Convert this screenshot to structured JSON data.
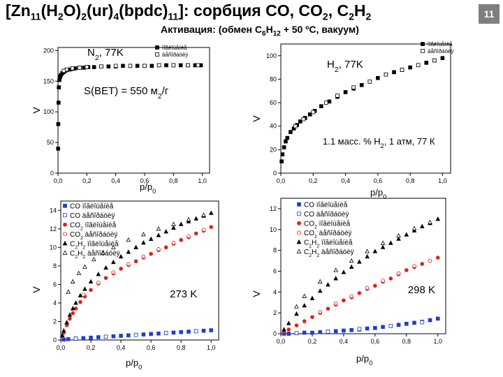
{
  "slide": {
    "title_parts": [
      "[Zn",
      "11",
      "(H",
      "2",
      "O)",
      "2",
      "(ur)",
      "4",
      "(bpdc)",
      "11",
      "]: сорбция CO, CO",
      "2",
      ", C",
      "2",
      "H",
      "2"
    ],
    "subtitle_parts": [
      "Активация: (обмен C",
      "6",
      "H",
      "12",
      " + 50 ºC, вакуум)"
    ],
    "page_number": "11"
  },
  "chart_data": [
    {
      "id": "n2",
      "type": "scatter",
      "xlabel": "p/p0",
      "ylabel": "V",
      "xlim": [
        0,
        1.05
      ],
      "ylim": [
        0,
        205
      ],
      "xticks": [
        0.0,
        0.2,
        0.4,
        0.6,
        0.8,
        1.0
      ],
      "xtick_labels": [
        "0,0",
        "0,2",
        "0,4",
        "0,6",
        "0,8",
        "1,0"
      ],
      "yticks": [
        0,
        50,
        100,
        150,
        200
      ],
      "ytick_labels": [
        "0",
        "50",
        "100",
        "150",
        "200"
      ],
      "annotations": [
        "N2, 77K",
        "S(BET) = 550 м2/г"
      ],
      "legend_position": "top-right",
      "series": [
        {
          "name": "ïîãëîùåíèå",
          "marker": "square-filled",
          "color": "#000000",
          "x": [
            0.001,
            0.002,
            0.004,
            0.006,
            0.01,
            0.015,
            0.02,
            0.03,
            0.04,
            0.05,
            0.06,
            0.08,
            0.1,
            0.12,
            0.15,
            0.18,
            0.21,
            0.25,
            0.3,
            0.35,
            0.4,
            0.45,
            0.5,
            0.55,
            0.6,
            0.65,
            0.7,
            0.75,
            0.8,
            0.85,
            0.9,
            0.95,
            0.99
          ],
          "y": [
            40,
            80,
            115,
            140,
            152,
            157,
            160,
            163,
            165,
            167,
            168,
            169,
            170,
            171,
            172,
            172,
            173,
            173,
            174,
            174,
            174,
            175,
            175,
            175,
            175,
            175,
            176,
            176,
            176,
            176,
            176,
            176,
            176
          ]
        },
        {
          "name": "äåñîðáöèÿ",
          "marker": "square-open",
          "color": "#000000",
          "x": [
            0.97,
            0.9,
            0.8,
            0.7,
            0.6,
            0.5,
            0.4,
            0.3,
            0.2,
            0.15,
            0.1,
            0.06,
            0.04
          ],
          "y": [
            176,
            176,
            176,
            176,
            175,
            175,
            175,
            174,
            173,
            172,
            171,
            169,
            167
          ]
        }
      ]
    },
    {
      "id": "h2",
      "type": "scatter",
      "xlabel": "p/p0",
      "ylabel": "V",
      "xlim": [
        0,
        1.05
      ],
      "ylim": [
        0,
        110
      ],
      "xticks": [
        0.0,
        0.2,
        0.4,
        0.6,
        0.8,
        1.0
      ],
      "xtick_labels": [
        "0,0",
        "0,2",
        "0,4",
        "0,6",
        "0,8",
        "1,0"
      ],
      "yticks": [
        0,
        20,
        40,
        60,
        80,
        100
      ],
      "ytick_labels": [
        "0",
        "20",
        "40",
        "60",
        "80",
        "100"
      ],
      "annotations": [
        "H2, 77K",
        "1.1 масс. % H2, 1 атм, 77 К"
      ],
      "legend_position": "top-right",
      "series": [
        {
          "name": "ïîãëîùåíèå",
          "marker": "square-filled",
          "color": "#000000",
          "x": [
            0.005,
            0.01,
            0.02,
            0.03,
            0.04,
            0.06,
            0.08,
            0.1,
            0.12,
            0.15,
            0.18,
            0.21,
            0.25,
            0.3,
            0.35,
            0.4,
            0.45,
            0.5,
            0.55,
            0.6,
            0.65,
            0.7,
            0.75,
            0.8,
            0.85,
            0.9,
            0.95,
            1.0
          ],
          "y": [
            10,
            16,
            22,
            27,
            30,
            35,
            38,
            41,
            44,
            47,
            50,
            53,
            57,
            61,
            65,
            69,
            72,
            75,
            78,
            81,
            84,
            86,
            88,
            90,
            92,
            94,
            96,
            98
          ]
        },
        {
          "name": "äåñîðáöèÿ",
          "marker": "square-open",
          "color": "#000000",
          "x": [
            0.95,
            0.85,
            0.75,
            0.65,
            0.55,
            0.45,
            0.35,
            0.28,
            0.2,
            0.14,
            0.09
          ],
          "y": [
            96,
            92,
            88,
            84,
            78,
            73,
            66,
            60,
            52,
            46,
            40
          ]
        }
      ]
    },
    {
      "id": "t273",
      "type": "scatter",
      "xlabel": "p/p0",
      "ylabel": "V",
      "xlim": [
        0,
        1.05
      ],
      "ylim": [
        0,
        15
      ],
      "xticks": [
        0.0,
        0.2,
        0.4,
        0.6,
        0.8,
        1.0
      ],
      "xtick_labels": [
        "0,0",
        "0,2",
        "0,4",
        "0,6",
        "0,8",
        "1,0"
      ],
      "yticks": [
        0,
        2,
        4,
        6,
        8,
        10,
        12,
        14
      ],
      "ytick_labels": [
        "0",
        "2",
        "4",
        "6",
        "8",
        "10",
        "12",
        "14"
      ],
      "annotations": [
        "273 K"
      ],
      "legend_position": "top-left",
      "series": [
        {
          "name": "CO ïîãëîùåíèå",
          "marker": "square-filled",
          "color": "#1f3fc8",
          "x": [
            0.02,
            0.05,
            0.1,
            0.15,
            0.2,
            0.25,
            0.3,
            0.35,
            0.4,
            0.45,
            0.5,
            0.55,
            0.6,
            0.65,
            0.7,
            0.75,
            0.8,
            0.85,
            0.9,
            0.95,
            1.0
          ],
          "y": [
            0.05,
            0.1,
            0.15,
            0.2,
            0.25,
            0.3,
            0.35,
            0.4,
            0.45,
            0.5,
            0.55,
            0.6,
            0.65,
            0.7,
            0.75,
            0.8,
            0.85,
            0.9,
            0.95,
            1.0,
            1.05
          ]
        },
        {
          "name": "CO äåñîðáöèÿ",
          "marker": "square-open",
          "color": "#1f3fc8",
          "x": [
            0.9,
            0.7,
            0.5,
            0.3,
            0.1
          ],
          "y": [
            0.95,
            0.75,
            0.55,
            0.35,
            0.15
          ]
        },
        {
          "name": "CO2 ïîãëîùåíèå",
          "marker": "circle-filled",
          "color": "#e0201a",
          "x": [
            0.01,
            0.02,
            0.04,
            0.06,
            0.08,
            0.1,
            0.13,
            0.16,
            0.2,
            0.25,
            0.3,
            0.35,
            0.4,
            0.45,
            0.5,
            0.55,
            0.6,
            0.65,
            0.7,
            0.75,
            0.8,
            0.85,
            0.9,
            0.95,
            1.0
          ],
          "y": [
            0.4,
            0.8,
            1.6,
            2.3,
            2.9,
            3.4,
            4.1,
            4.7,
            5.4,
            6.1,
            6.7,
            7.2,
            7.7,
            8.1,
            8.5,
            8.9,
            9.3,
            9.7,
            10.0,
            10.4,
            10.8,
            11.1,
            11.5,
            11.8,
            12.2
          ]
        },
        {
          "name": "CO2 äåñîðáöèÿ",
          "marker": "circle-open",
          "color": "#e0201a",
          "x": [
            0.95,
            0.85,
            0.75,
            0.65,
            0.55,
            0.45,
            0.35,
            0.25,
            0.15
          ],
          "y": [
            11.9,
            11.2,
            10.5,
            9.8,
            9.0,
            8.2,
            7.3,
            6.2,
            4.9
          ]
        },
        {
          "name": "C2H2 ïîãëîùåíèå",
          "marker": "triangle-filled",
          "color": "#000000",
          "x": [
            0.01,
            0.02,
            0.04,
            0.06,
            0.08,
            0.1,
            0.13,
            0.16,
            0.2,
            0.25,
            0.3,
            0.35,
            0.4,
            0.45,
            0.5,
            0.55,
            0.6,
            0.65,
            0.7,
            0.75,
            0.8,
            0.85,
            0.9,
            0.95,
            1.0
          ],
          "y": [
            0.5,
            1.0,
            1.9,
            2.7,
            3.4,
            4.0,
            4.8,
            5.5,
            6.3,
            7.1,
            7.8,
            8.4,
            9.0,
            9.5,
            10.0,
            10.5,
            10.9,
            11.3,
            11.7,
            12.1,
            12.5,
            12.8,
            13.1,
            13.4,
            13.7
          ]
        },
        {
          "name": "C2H2 äåñîðáöèÿ",
          "marker": "triangle-open",
          "color": "#000000",
          "x": [
            0.95,
            0.85,
            0.75,
            0.65,
            0.55,
            0.45,
            0.35,
            0.28,
            0.22,
            0.16,
            0.12,
            0.08,
            0.05
          ],
          "y": [
            13.5,
            13.0,
            12.5,
            12.0,
            11.4,
            10.8,
            10.0,
            9.4,
            8.7,
            7.9,
            7.2,
            6.3,
            5.2
          ]
        }
      ]
    },
    {
      "id": "t298",
      "type": "scatter",
      "xlabel": "p/p0",
      "ylabel": "V",
      "xlim": [
        0,
        1.05
      ],
      "ylim": [
        0,
        13
      ],
      "xticks": [
        0.0,
        0.2,
        0.4,
        0.6,
        0.8,
        1.0
      ],
      "xtick_labels": [
        "0,0",
        "0,2",
        "0,4",
        "0,6",
        "0,8",
        "1,0"
      ],
      "yticks": [
        0,
        2,
        4,
        6,
        8,
        10,
        12
      ],
      "ytick_labels": [
        "0",
        "2",
        "4",
        "6",
        "8",
        "10",
        "12"
      ],
      "annotations": [
        "298 K"
      ],
      "legend_position": "top-left",
      "series": [
        {
          "name": "CO ïîãëîùåíèå",
          "marker": "square-filled",
          "color": "#1f3fc8",
          "x": [
            0.02,
            0.05,
            0.1,
            0.15,
            0.2,
            0.25,
            0.3,
            0.35,
            0.4,
            0.45,
            0.5,
            0.55,
            0.6,
            0.65,
            0.7,
            0.75,
            0.8,
            0.85,
            0.9,
            0.95,
            1.0
          ],
          "y": [
            0.0,
            0.0,
            0.05,
            0.1,
            0.1,
            0.15,
            0.2,
            0.25,
            0.3,
            0.35,
            0.4,
            0.5,
            0.55,
            0.65,
            0.75,
            0.85,
            0.95,
            1.05,
            1.15,
            1.3,
            1.45
          ]
        },
        {
          "name": "CO äåñîðáöèÿ",
          "marker": "square-open",
          "color": "#1f3fc8",
          "x": [
            0.9,
            0.7,
            0.5,
            0.3,
            0.1
          ],
          "y": [
            1.1,
            0.75,
            0.45,
            0.2,
            0.05
          ]
        },
        {
          "name": "CO2 ïîãëîùåíèå",
          "marker": "circle-filled",
          "color": "#e0201a",
          "x": [
            0.02,
            0.05,
            0.1,
            0.15,
            0.2,
            0.25,
            0.3,
            0.35,
            0.4,
            0.45,
            0.5,
            0.55,
            0.6,
            0.65,
            0.7,
            0.75,
            0.8,
            0.85,
            0.9,
            0.95,
            1.0
          ],
          "y": [
            0.2,
            0.4,
            0.8,
            1.2,
            1.6,
            2.0,
            2.4,
            2.8,
            3.2,
            3.5,
            3.9,
            4.3,
            4.6,
            5.0,
            5.3,
            5.7,
            6.1,
            6.4,
            6.7,
            7.0,
            7.3
          ]
        },
        {
          "name": "CO2 äåñîðáöèÿ",
          "marker": "circle-open",
          "color": "#e0201a",
          "x": [
            0.95,
            0.85,
            0.75,
            0.65,
            0.55,
            0.45,
            0.35,
            0.25
          ],
          "y": [
            7.0,
            6.5,
            5.8,
            5.1,
            4.4,
            3.6,
            2.9,
            2.1
          ]
        },
        {
          "name": "C2H2 ïîãëîùåíèå",
          "marker": "triangle-filled",
          "color": "#000000",
          "x": [
            0.02,
            0.05,
            0.1,
            0.15,
            0.2,
            0.25,
            0.3,
            0.35,
            0.4,
            0.45,
            0.5,
            0.55,
            0.6,
            0.65,
            0.7,
            0.75,
            0.8,
            0.85,
            0.9,
            0.95,
            1.0
          ],
          "y": [
            0.4,
            1.0,
            1.9,
            2.7,
            3.4,
            4.1,
            4.7,
            5.3,
            5.9,
            6.4,
            6.9,
            7.4,
            7.9,
            8.3,
            8.7,
            9.1,
            9.5,
            9.9,
            10.3,
            10.6,
            11.0
          ]
        },
        {
          "name": "C2H2 äåñîðáöèÿ",
          "marker": "triangle-open",
          "color": "#000000",
          "x": [
            0.95,
            0.85,
            0.75,
            0.65,
            0.55,
            0.45,
            0.35,
            0.25,
            0.15,
            0.1
          ],
          "y": [
            10.7,
            10.1,
            9.4,
            8.7,
            7.9,
            7.0,
            6.1,
            5.0,
            3.6,
            2.6
          ]
        }
      ]
    }
  ]
}
